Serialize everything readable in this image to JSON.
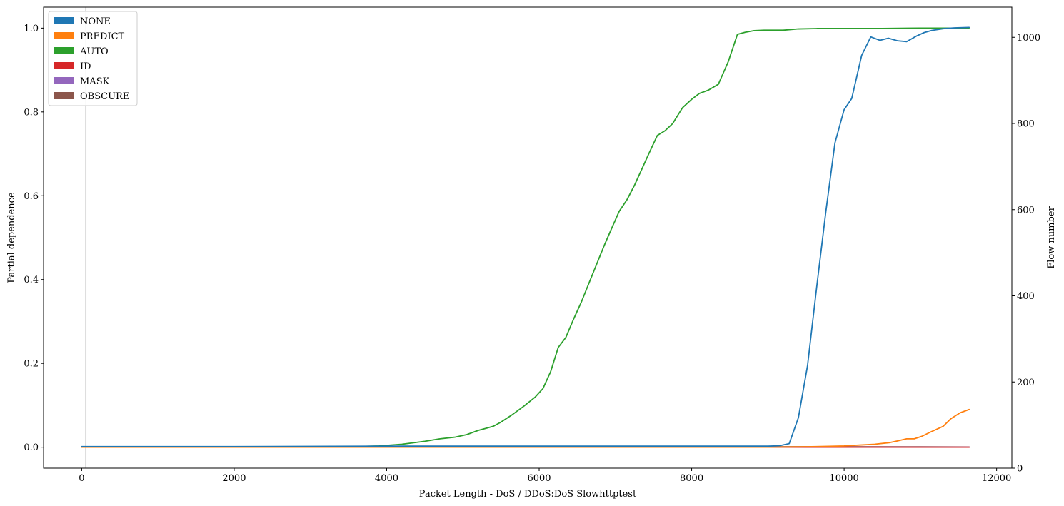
{
  "chart_data": {
    "type": "line",
    "xlabel": "Packet Length - DoS / DDoS:DoS Slowhttptest",
    "ylabel": "Partial dependence",
    "y2label": "Flow number",
    "xlim": [
      -500,
      12200
    ],
    "ylim": [
      -0.05,
      1.05
    ],
    "y2lim": [
      0,
      1070
    ],
    "xticks": [
      0,
      2000,
      4000,
      6000,
      8000,
      10000,
      12000
    ],
    "yticks": [
      0.0,
      0.2,
      0.4,
      0.6,
      0.8,
      1.0
    ],
    "y2ticks": [
      0,
      200,
      400,
      600,
      800,
      1000
    ],
    "xtick_labels": [
      "0",
      "2000",
      "4000",
      "6000",
      "8000",
      "10000",
      "12000"
    ],
    "ytick_labels": [
      "0.0",
      "0.2",
      "0.4",
      "0.6",
      "0.8",
      "1.0"
    ],
    "y2tick_labels": [
      "0",
      "200",
      "400",
      "600",
      "800",
      "1000"
    ],
    "grid": false,
    "legend_position": "top-left",
    "vline": {
      "x": 55,
      "color": "#bbbbbb"
    },
    "series": [
      {
        "name": "OBSCURE",
        "color": "#8c564b",
        "axis": "y",
        "x": [
          0,
          2000,
          4000,
          6000,
          8000,
          9000,
          10000,
          11000,
          11640
        ],
        "y": [
          0.001,
          0.001,
          0.001,
          0.001,
          0.001,
          0.001,
          0.001,
          0.0008,
          0.0005
        ]
      },
      {
        "name": "MASK",
        "color": "#9467bd",
        "axis": "y",
        "x": [
          0,
          4000,
          8000,
          11640
        ],
        "y": [
          0.0,
          0.0,
          0.0,
          0.0
        ]
      },
      {
        "name": "ID",
        "color": "#d62728",
        "axis": "y",
        "x": [
          0,
          4000,
          8000,
          11640
        ],
        "y": [
          0.0,
          0.0,
          0.0,
          0.0
        ]
      },
      {
        "name": "AUTO",
        "color": "#2ca02c",
        "axis": "y",
        "x": [
          0,
          1000,
          2000,
          3000,
          3500,
          3900,
          4200,
          4500,
          4700,
          4900,
          5050,
          5200,
          5300,
          5400,
          5500,
          5650,
          5800,
          5950,
          6050,
          6150,
          6250,
          6350,
          6450,
          6550,
          6650,
          6750,
          6850,
          6950,
          7050,
          7150,
          7250,
          7350,
          7450,
          7550,
          7650,
          7750,
          7880,
          8000,
          8100,
          8220,
          8350,
          8480,
          8600,
          8700,
          8820,
          8950,
          9200,
          9400,
          9650,
          9850,
          10000,
          10500,
          11000,
          11400,
          11640
        ],
        "y": [
          0.0,
          0.0,
          0.0,
          0.0,
          0.001,
          0.003,
          0.007,
          0.014,
          0.02,
          0.024,
          0.03,
          0.04,
          0.045,
          0.05,
          0.06,
          0.078,
          0.098,
          0.12,
          0.14,
          0.18,
          0.238,
          0.262,
          0.305,
          0.345,
          0.39,
          0.435,
          0.48,
          0.522,
          0.563,
          0.59,
          0.625,
          0.665,
          0.705,
          0.744,
          0.755,
          0.772,
          0.81,
          0.83,
          0.844,
          0.852,
          0.866,
          0.92,
          0.985,
          0.99,
          0.994,
          0.995,
          0.995,
          0.998,
          0.999,
          0.999,
          0.999,
          0.999,
          1.0,
          1.0,
          0.999
        ]
      },
      {
        "name": "PREDICT",
        "color": "#ff7f0e",
        "axis": "y",
        "x": [
          0,
          2000,
          4000,
          6000,
          8000,
          9000,
          9500,
          9800,
          10000,
          10200,
          10400,
          10600,
          10700,
          10820,
          10920,
          11020,
          11120,
          11300,
          11400,
          11520,
          11640
        ],
        "y": [
          0.0,
          0.0,
          0.0,
          0.0,
          0.0,
          0.0,
          0.001,
          0.002,
          0.003,
          0.005,
          0.007,
          0.011,
          0.015,
          0.02,
          0.02,
          0.026,
          0.035,
          0.05,
          0.068,
          0.082,
          0.09
        ]
      },
      {
        "name": "NONE",
        "color": "#1f77b4",
        "axis": "y2",
        "x": [
          0,
          2000,
          4000,
          6000,
          8000,
          9000,
          9150,
          9280,
          9400,
          9520,
          9640,
          9760,
          9880,
          10000,
          10100,
          10230,
          10350,
          10470,
          10580,
          10700,
          10820,
          10950,
          11050,
          11150,
          11300,
          11450,
          11640
        ],
        "y": [
          50,
          50,
          51,
          51,
          51,
          51,
          52,
          57,
          117,
          238,
          420,
          595,
          755,
          832,
          858,
          958,
          1001,
          993,
          998,
          992,
          990,
          1003,
          1011,
          1016,
          1020,
          1022,
          1023
        ]
      }
    ]
  }
}
